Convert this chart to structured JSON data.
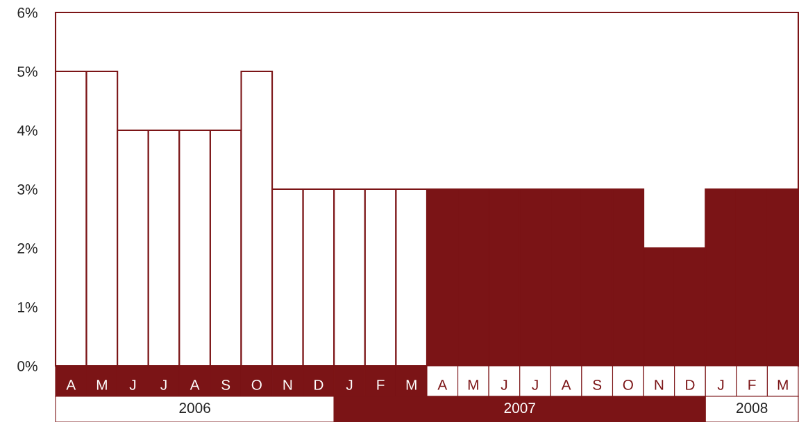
{
  "chart_data": {
    "type": "bar",
    "categories": [
      "A",
      "M",
      "J",
      "J",
      "A",
      "S",
      "O",
      "N",
      "D",
      "J",
      "F",
      "M",
      "A",
      "M",
      "J",
      "J",
      "A",
      "S",
      "O",
      "N",
      "D",
      "J",
      "F",
      "M"
    ],
    "values": [
      5,
      5,
      4,
      4,
      4,
      4,
      5,
      3,
      3,
      3,
      3,
      3,
      3,
      3,
      3,
      3,
      3,
      3,
      3,
      2,
      2,
      3,
      3,
      3
    ],
    "colors": [
      "#ffffff",
      "#ffffff",
      "#ffffff",
      "#ffffff",
      "#ffffff",
      "#ffffff",
      "#ffffff",
      "#ffffff",
      "#ffffff",
      "#ffffff",
      "#ffffff",
      "#ffffff",
      "#7b1416",
      "#7b1416",
      "#7b1416",
      "#7b1416",
      "#7b1416",
      "#7b1416",
      "#7b1416",
      "#7b1416",
      "#7b1416",
      "#7b1416",
      "#7b1416",
      "#7b1416"
    ],
    "ylim": [
      0,
      6
    ],
    "yticks": [
      {
        "value": 0,
        "label": "0%"
      },
      {
        "value": 1,
        "label": "1%"
      },
      {
        "value": 2,
        "label": "2%"
      },
      {
        "value": 3,
        "label": "3%"
      },
      {
        "value": 4,
        "label": "4%"
      },
      {
        "value": 5,
        "label": "5%"
      },
      {
        "value": 6,
        "label": "6%"
      }
    ],
    "annotations": [
      "2006",
      "2007",
      "2008"
    ],
    "grid": false
  }
}
